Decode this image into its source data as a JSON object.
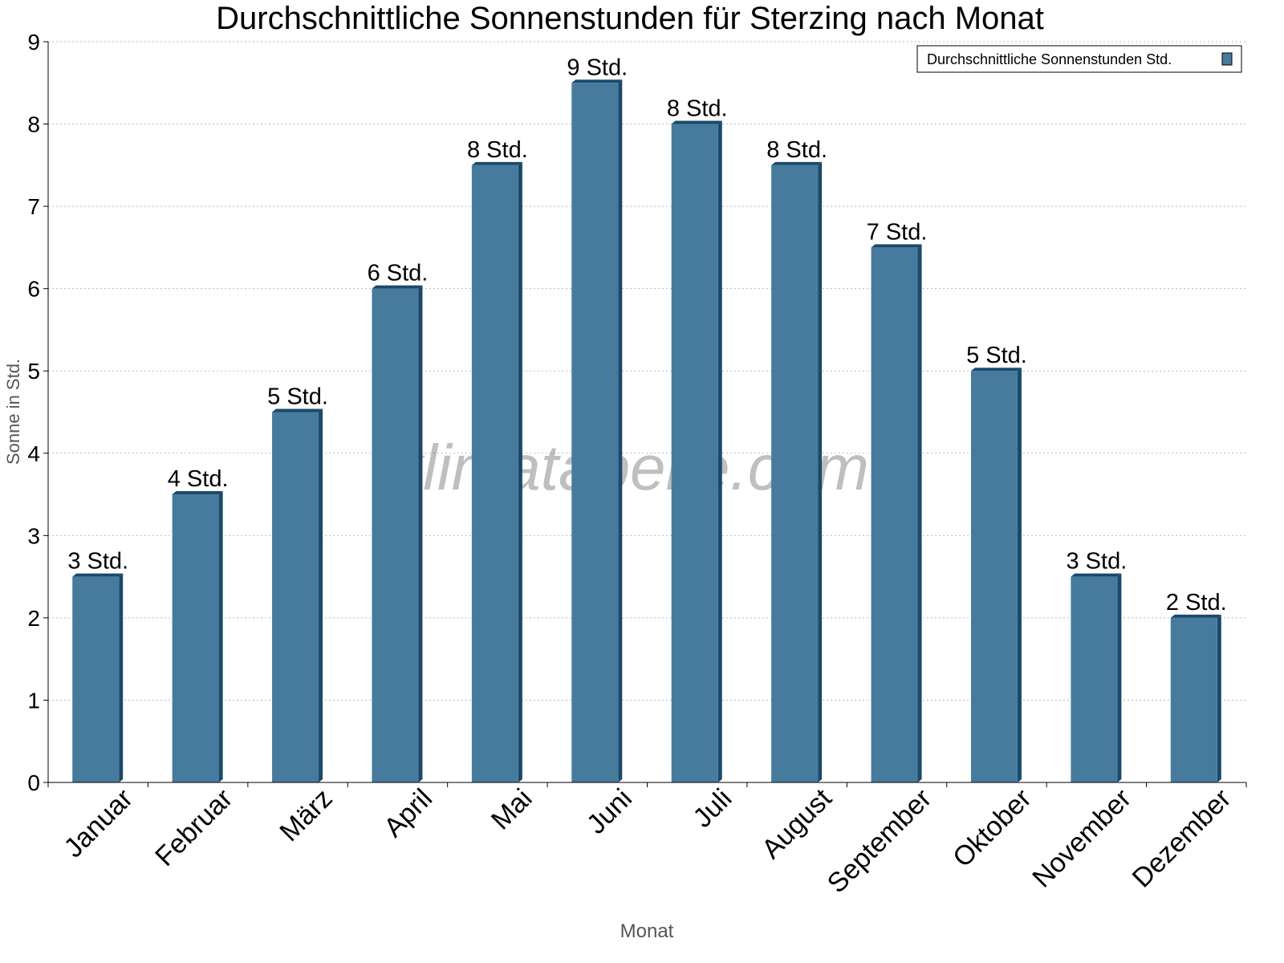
{
  "chart_data": {
    "type": "bar",
    "title": "Durchschnittliche Sonnenstunden für Sterzing nach Monat",
    "xlabel": "Monat",
    "ylabel": "Sonne in Std.",
    "ylim": [
      0,
      9
    ],
    "yticks": [
      "0",
      "1",
      "2",
      "3",
      "4",
      "5",
      "6",
      "7",
      "8",
      "9"
    ],
    "grid": true,
    "legend_position": "top-right",
    "categories": [
      "Januar",
      "Februar",
      "März",
      "April",
      "Mai",
      "Juni",
      "Juli",
      "August",
      "September",
      "Oktober",
      "November",
      "Dezember"
    ],
    "series": [
      {
        "name": "Durchschnittliche Sonnenstunden Std.",
        "color": "#467b9d",
        "side_color": "#1a4a6b",
        "values": [
          2.5,
          3.5,
          4.5,
          6.0,
          7.5,
          8.5,
          8.0,
          7.5,
          6.5,
          5.0,
          2.5,
          2.0
        ],
        "data_labels": [
          "3 Std.",
          "4 Std.",
          "5 Std.",
          "6 Std.",
          "8 Std.",
          "9 Std.",
          "8 Std.",
          "8 Std.",
          "7 Std.",
          "5 Std.",
          "3 Std.",
          "2 Std."
        ]
      }
    ],
    "watermark": "klimatabelle.com"
  }
}
